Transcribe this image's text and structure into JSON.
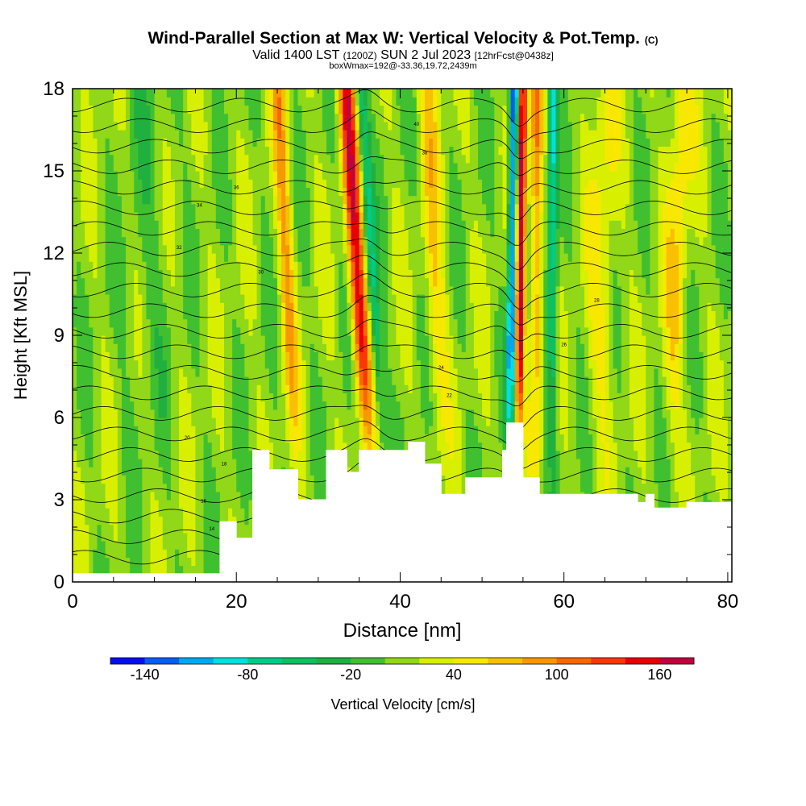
{
  "title": {
    "main": "Wind-Parallel Section at Max W: Vertical Velocity & Pot.Temp.",
    "copyright": "(C)",
    "valid_prefix": "Valid 1400 LST",
    "valid_utc": "(1200Z)",
    "valid_date": "SUN 2 Jul 2023",
    "forecast": "[12hrFcst@0438z]",
    "subline": "boxWmax=192@-33.36,19.72,2439m"
  },
  "chart_data": {
    "type": "heatmap",
    "xlabel": "Distance [nm]",
    "ylabel": "Height [Kft MSL]",
    "xlim": [
      0,
      80.5
    ],
    "ylim": [
      0,
      18
    ],
    "x_ticks": [
      0,
      20,
      40,
      60,
      80
    ],
    "y_ticks": [
      0,
      3,
      6,
      9,
      12,
      15,
      18
    ],
    "colorbar": {
      "label": "Vertical Velocity [cm/s]",
      "levels": [
        -160,
        -140,
        -120,
        -100,
        -80,
        -60,
        -40,
        -20,
        0,
        20,
        40,
        60,
        80,
        100,
        120,
        140,
        160,
        180
      ],
      "tick_values": [
        -140,
        -80,
        -20,
        40,
        100,
        160
      ],
      "tick_labels": [
        "-140",
        "-80",
        "-20",
        "40",
        "100",
        "160"
      ],
      "colors": [
        "#0010f0",
        "#0060f0",
        "#00a8f0",
        "#00e0e0",
        "#00cc88",
        "#10c060",
        "#20b040",
        "#40c030",
        "#90d818",
        "#d8f000",
        "#f8e800",
        "#f8c000",
        "#f89800",
        "#f86800",
        "#f83800",
        "#e80000",
        "#c00040"
      ]
    },
    "terrain_kft": [
      [
        0,
        0.3
      ],
      [
        17,
        0.3
      ],
      [
        18,
        2.2
      ],
      [
        19.8,
        2.2
      ],
      [
        20,
        1.6
      ],
      [
        21.5,
        1.6
      ],
      [
        22,
        4.8
      ],
      [
        23.5,
        4.8
      ],
      [
        24,
        4.1
      ],
      [
        27,
        4.1
      ],
      [
        27.5,
        3.0
      ],
      [
        30,
        3.0
      ],
      [
        31,
        4.8
      ],
      [
        33,
        4.8
      ],
      [
        33.5,
        4.0
      ],
      [
        35,
        4.8
      ],
      [
        40.5,
        4.8
      ],
      [
        41,
        5.1
      ],
      [
        42.5,
        5.1
      ],
      [
        43,
        4.3
      ],
      [
        44,
        4.3
      ],
      [
        45,
        3.2
      ],
      [
        47,
        3.2
      ],
      [
        48,
        3.8
      ],
      [
        52,
        3.8
      ],
      [
        52.5,
        4.8
      ],
      [
        53,
        5.8
      ],
      [
        54.5,
        5.8
      ],
      [
        55,
        3.8
      ],
      [
        56.5,
        3.8
      ],
      [
        57,
        3.2
      ],
      [
        65,
        3.2
      ],
      [
        69,
        2.9
      ],
      [
        70,
        3.2
      ],
      [
        71,
        2.7
      ],
      [
        74,
        2.7
      ],
      [
        75,
        2.9
      ],
      [
        80.5,
        2.9
      ]
    ],
    "contour_labels": [
      "14",
      "16",
      "18",
      "20",
      "22",
      "24",
      "26",
      "28",
      "30",
      "32",
      "34",
      "36",
      "38",
      "40"
    ]
  }
}
